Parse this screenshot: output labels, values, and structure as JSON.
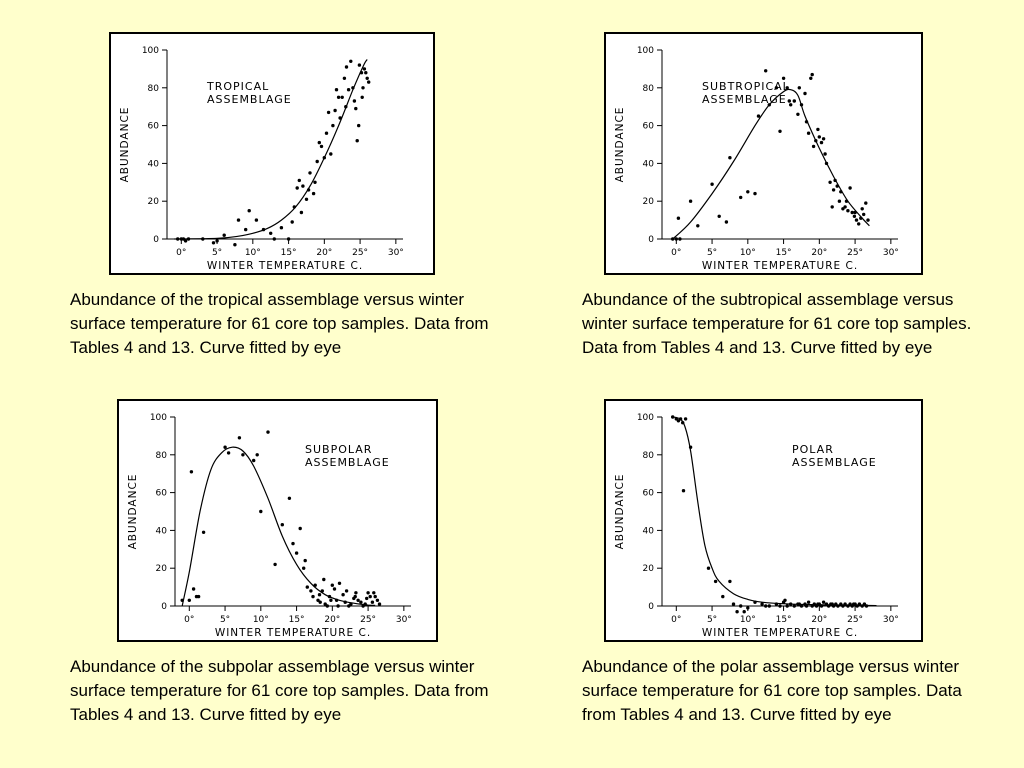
{
  "chart_data": [
    {
      "type": "scatter",
      "title": "TROPICAL\nASSEMBLAGE",
      "xlabel": "WINTER TEMPERATURE C.",
      "ylabel": "ABUNDANCE",
      "xlim": [
        -2,
        31
      ],
      "ylim": [
        0,
        100
      ],
      "xticks": [
        0,
        5,
        10,
        15,
        20,
        25,
        30
      ],
      "xtick_labels": [
        "0°",
        "5°",
        "10°",
        "15°",
        "20°",
        "25°",
        "30°"
      ],
      "yticks": [
        0,
        20,
        40,
        60,
        80,
        100
      ],
      "ytick_labels": [
        "0",
        "20",
        "40",
        "60",
        "80",
        "100"
      ],
      "title_pos": "upper-left",
      "caption": "Abundance of the tropical assemblage versus winter surface temperature for 61 core top samples. Data from Tables 4 and 13. Curve fitted by eye",
      "points": [
        [
          -0.5,
          0
        ],
        [
          0,
          0
        ],
        [
          0.3,
          0
        ],
        [
          0.6,
          -1
        ],
        [
          1,
          0
        ],
        [
          4.5,
          -2
        ],
        [
          5,
          -1
        ],
        [
          6,
          2
        ],
        [
          7.5,
          -3
        ],
        [
          8,
          10
        ],
        [
          9.5,
          15
        ],
        [
          10.5,
          10
        ],
        [
          11.5,
          5
        ],
        [
          14,
          6
        ],
        [
          15,
          0
        ],
        [
          15.5,
          9
        ],
        [
          15.8,
          17
        ],
        [
          16.2,
          27
        ],
        [
          16.5,
          31
        ],
        [
          17,
          28
        ],
        [
          17.5,
          21
        ],
        [
          17.8,
          26
        ],
        [
          18,
          35
        ],
        [
          18.5,
          24
        ],
        [
          18.7,
          30
        ],
        [
          19,
          41
        ],
        [
          19.3,
          51
        ],
        [
          19.6,
          49
        ],
        [
          20,
          43
        ],
        [
          20.3,
          56
        ],
        [
          20.6,
          67
        ],
        [
          20.9,
          45
        ],
        [
          21.2,
          60
        ],
        [
          21.5,
          68
        ],
        [
          21.7,
          79
        ],
        [
          22,
          75
        ],
        [
          22.2,
          64
        ],
        [
          22.5,
          75
        ],
        [
          22.8,
          85
        ],
        [
          23.1,
          91
        ],
        [
          23.4,
          79
        ],
        [
          23.7,
          94
        ],
        [
          24,
          80
        ],
        [
          24.2,
          73
        ],
        [
          24.4,
          69
        ],
        [
          24.6,
          52
        ],
        [
          24.9,
          92
        ],
        [
          25.2,
          88
        ],
        [
          25.4,
          80
        ],
        [
          25.6,
          90
        ],
        [
          25.8,
          88
        ],
        [
          26,
          85
        ],
        [
          26.2,
          83
        ],
        [
          25.3,
          75
        ],
        [
          23,
          70
        ],
        [
          24.8,
          60
        ],
        [
          16.8,
          14
        ],
        [
          12.5,
          3
        ],
        [
          9,
          5
        ],
        [
          13,
          0
        ],
        [
          3,
          0
        ]
      ],
      "curve": [
        [
          -1,
          0
        ],
        [
          5,
          0.3
        ],
        [
          8,
          1.5
        ],
        [
          10,
          3
        ],
        [
          12,
          5.5
        ],
        [
          14,
          10
        ],
        [
          16,
          17
        ],
        [
          18,
          28
        ],
        [
          20,
          43
        ],
        [
          22,
          60
        ],
        [
          24,
          79
        ],
        [
          25.5,
          92
        ],
        [
          26,
          95
        ]
      ]
    },
    {
      "type": "scatter",
      "title": "SUBTROPICAL\nASSEMBLAGE",
      "xlabel": "WINTER TEMPERATURE C.",
      "ylabel": "ABUNDANCE",
      "xlim": [
        -2,
        31
      ],
      "ylim": [
        0,
        100
      ],
      "xticks": [
        0,
        5,
        10,
        15,
        20,
        25,
        30
      ],
      "xtick_labels": [
        "0°",
        "5°",
        "10°",
        "15°",
        "20°",
        "25°",
        "30°"
      ],
      "yticks": [
        0,
        20,
        40,
        60,
        80,
        100
      ],
      "ytick_labels": [
        "0",
        "20",
        "40",
        "60",
        "80",
        "100"
      ],
      "title_pos": "upper-left",
      "caption": "Abundance of the subtropical assemblage versus winter surface temperature for 61 core top samples. Data from Tables 4 and 13. Curve fitted by eye",
      "points": [
        [
          -0.5,
          0
        ],
        [
          0,
          0
        ],
        [
          0.5,
          0
        ],
        [
          0.3,
          11
        ],
        [
          2,
          20
        ],
        [
          3,
          7
        ],
        [
          5,
          29
        ],
        [
          6,
          12
        ],
        [
          7,
          9
        ],
        [
          7.5,
          43
        ],
        [
          9,
          22
        ],
        [
          10,
          25
        ],
        [
          11,
          24
        ],
        [
          11.5,
          65
        ],
        [
          12.5,
          89
        ],
        [
          13,
          71
        ],
        [
          14,
          80
        ],
        [
          14.5,
          57
        ],
        [
          15,
          85
        ],
        [
          15.5,
          80
        ],
        [
          16,
          71
        ],
        [
          16.5,
          73
        ],
        [
          17,
          66
        ],
        [
          17.5,
          71
        ],
        [
          18,
          77
        ],
        [
          18.2,
          62
        ],
        [
          18.5,
          56
        ],
        [
          18.8,
          85
        ],
        [
          19,
          87
        ],
        [
          19.2,
          49
        ],
        [
          19.5,
          52
        ],
        [
          19.8,
          58
        ],
        [
          20,
          54
        ],
        [
          20.3,
          51
        ],
        [
          20.6,
          53
        ],
        [
          21,
          40
        ],
        [
          21.5,
          30
        ],
        [
          21.8,
          17
        ],
        [
          22,
          26
        ],
        [
          22.2,
          31
        ],
        [
          22.5,
          28
        ],
        [
          22.8,
          20
        ],
        [
          23,
          25
        ],
        [
          23.3,
          16
        ],
        [
          23.6,
          17
        ],
        [
          24,
          15
        ],
        [
          24.3,
          27
        ],
        [
          24.6,
          14
        ],
        [
          24.9,
          12
        ],
        [
          25.2,
          10
        ],
        [
          25.5,
          8
        ],
        [
          25.8,
          11
        ],
        [
          26,
          16
        ],
        [
          26.2,
          13
        ],
        [
          26.5,
          19
        ],
        [
          26.8,
          10
        ],
        [
          15.8,
          73
        ],
        [
          17.2,
          80
        ],
        [
          20.8,
          45
        ],
        [
          23.8,
          20
        ],
        [
          25,
          14
        ]
      ],
      "curve": [
        [
          -0.5,
          0
        ],
        [
          2,
          9
        ],
        [
          5,
          24
        ],
        [
          8,
          41
        ],
        [
          11,
          60
        ],
        [
          13,
          71
        ],
        [
          15,
          78
        ],
        [
          16,
          79
        ],
        [
          17,
          76
        ],
        [
          18,
          65
        ],
        [
          20,
          48
        ],
        [
          22,
          33
        ],
        [
          24,
          20
        ],
        [
          26,
          11
        ],
        [
          27,
          7
        ]
      ]
    },
    {
      "type": "scatter",
      "title": "SUBPOLAR\nASSEMBLAGE",
      "xlabel": "WINTER TEMPERATURE C.",
      "ylabel": "ABUNDANCE",
      "xlim": [
        -2,
        31
      ],
      "ylim": [
        0,
        100
      ],
      "xticks": [
        0,
        5,
        10,
        15,
        20,
        25,
        30
      ],
      "xtick_labels": [
        "0°",
        "5°",
        "10°",
        "15°",
        "20°",
        "25°",
        "30°"
      ],
      "yticks": [
        0,
        20,
        40,
        60,
        80,
        100
      ],
      "ytick_labels": [
        "0",
        "20",
        "40",
        "60",
        "80",
        "100"
      ],
      "title_pos": "upper-right",
      "caption": "Abundance of the subpolar assemblage versus winter surface temperature for 61 core top samples. Data from Tables 4 and 13. Curve fitted by eye",
      "points": [
        [
          -1,
          3
        ],
        [
          0,
          3
        ],
        [
          0.3,
          71
        ],
        [
          0.6,
          9
        ],
        [
          1,
          5
        ],
        [
          1.3,
          5
        ],
        [
          2,
          39
        ],
        [
          5,
          84
        ],
        [
          5.5,
          81
        ],
        [
          7,
          89
        ],
        [
          7.5,
          80
        ],
        [
          9,
          77
        ],
        [
          9.5,
          80
        ],
        [
          10,
          50
        ],
        [
          11,
          92
        ],
        [
          12,
          22
        ],
        [
          13,
          43
        ],
        [
          14,
          57
        ],
        [
          14.5,
          33
        ],
        [
          15,
          28
        ],
        [
          15.5,
          41
        ],
        [
          16,
          20
        ],
        [
          16.5,
          10
        ],
        [
          17,
          8
        ],
        [
          17.3,
          5
        ],
        [
          17.6,
          11
        ],
        [
          18,
          3
        ],
        [
          18.3,
          2
        ],
        [
          18.6,
          8
        ],
        [
          19,
          1
        ],
        [
          19.3,
          0
        ],
        [
          19.6,
          5
        ],
        [
          20,
          11
        ],
        [
          20.3,
          9
        ],
        [
          20.6,
          3
        ],
        [
          21,
          12
        ],
        [
          21.5,
          6
        ],
        [
          21.8,
          2
        ],
        [
          22,
          8
        ],
        [
          22.3,
          0
        ],
        [
          22.6,
          1
        ],
        [
          23,
          4
        ],
        [
          23.3,
          7
        ],
        [
          23.6,
          3
        ],
        [
          24,
          2
        ],
        [
          24.3,
          0
        ],
        [
          24.6,
          1
        ],
        [
          25,
          7
        ],
        [
          25.3,
          5
        ],
        [
          25.6,
          2
        ],
        [
          26,
          5
        ],
        [
          26.3,
          3
        ],
        [
          26.6,
          1
        ],
        [
          16.2,
          24
        ],
        [
          18.8,
          14
        ],
        [
          20.8,
          0
        ],
        [
          23.2,
          5
        ],
        [
          24.8,
          4
        ],
        [
          25.8,
          7
        ],
        [
          19.8,
          3
        ],
        [
          18.2,
          6
        ]
      ],
      "curve": [
        [
          -1,
          0
        ],
        [
          0,
          18
        ],
        [
          1.5,
          50
        ],
        [
          3,
          72
        ],
        [
          4.5,
          81
        ],
        [
          6,
          84
        ],
        [
          7.5,
          82
        ],
        [
          9,
          74
        ],
        [
          11,
          57
        ],
        [
          13,
          37
        ],
        [
          15,
          22
        ],
        [
          17,
          12
        ],
        [
          19,
          6
        ],
        [
          21,
          3
        ],
        [
          23,
          1.5
        ],
        [
          25,
          0.5
        ],
        [
          26,
          0.3
        ]
      ]
    },
    {
      "type": "scatter",
      "title": "POLAR\nASSEMBLAGE",
      "xlabel": "WINTER TEMPERATURE C.",
      "ylabel": "ABUNDANCE",
      "xlim": [
        -2,
        31
      ],
      "ylim": [
        0,
        100
      ],
      "xticks": [
        0,
        5,
        10,
        15,
        20,
        25,
        30
      ],
      "xtick_labels": [
        "0°",
        "5°",
        "10°",
        "15°",
        "20°",
        "25°",
        "30°"
      ],
      "yticks": [
        0,
        20,
        40,
        60,
        80,
        100
      ],
      "ytick_labels": [
        "0",
        "20",
        "40",
        "60",
        "80",
        "100"
      ],
      "title_pos": "upper-right",
      "caption": "Abundance of the polar assemblage versus winter surface temperature for 61 core top samples. Data from Tables 4 and 13. Curve fitted by eye",
      "points": [
        [
          -0.5,
          100
        ],
        [
          0,
          99
        ],
        [
          0.3,
          98
        ],
        [
          0.6,
          99
        ],
        [
          0.9,
          97
        ],
        [
          1,
          61
        ],
        [
          1.3,
          99
        ],
        [
          2,
          84
        ],
        [
          4.5,
          20
        ],
        [
          5.5,
          13
        ],
        [
          6.5,
          5
        ],
        [
          7.5,
          13
        ],
        [
          8.5,
          -3
        ],
        [
          9,
          0
        ],
        [
          10,
          -1
        ],
        [
          11,
          2
        ],
        [
          12,
          1
        ],
        [
          13,
          0
        ],
        [
          14,
          1
        ],
        [
          15,
          2
        ],
        [
          15.5,
          0
        ],
        [
          16,
          1
        ],
        [
          16.5,
          0
        ],
        [
          17,
          1
        ],
        [
          17.5,
          0
        ],
        [
          18,
          1
        ],
        [
          18.5,
          2
        ],
        [
          19,
          0
        ],
        [
          19.3,
          1
        ],
        [
          19.6,
          0
        ],
        [
          20,
          1
        ],
        [
          20.3,
          0
        ],
        [
          20.6,
          2
        ],
        [
          21,
          1
        ],
        [
          21.3,
          0
        ],
        [
          21.6,
          1
        ],
        [
          22,
          0
        ],
        [
          22.3,
          1
        ],
        [
          22.6,
          0
        ],
        [
          23,
          1
        ],
        [
          23.3,
          0
        ],
        [
          23.6,
          1
        ],
        [
          24,
          0
        ],
        [
          24.3,
          1
        ],
        [
          24.6,
          0
        ],
        [
          25,
          1
        ],
        [
          25.3,
          0
        ],
        [
          25.6,
          1
        ],
        [
          26,
          0
        ],
        [
          26.3,
          1
        ],
        [
          26.6,
          0
        ],
        [
          15.2,
          3
        ],
        [
          17.2,
          1
        ],
        [
          19.8,
          1
        ],
        [
          21.8,
          1
        ],
        [
          24.8,
          1
        ],
        [
          12.5,
          0
        ],
        [
          9.5,
          -3
        ],
        [
          8,
          1
        ],
        [
          14.5,
          0
        ],
        [
          18.2,
          0
        ]
      ],
      "curve": [
        [
          -0.5,
          100
        ],
        [
          0.5,
          99
        ],
        [
          1.2,
          95
        ],
        [
          2,
          82
        ],
        [
          3,
          55
        ],
        [
          4,
          32
        ],
        [
          5,
          20
        ],
        [
          6,
          13
        ],
        [
          8,
          6.5
        ],
        [
          10,
          3.5
        ],
        [
          12,
          2
        ],
        [
          15,
          1.2
        ],
        [
          18,
          0.8
        ],
        [
          22,
          0.5
        ],
        [
          26,
          0.3
        ],
        [
          28,
          0.2
        ]
      ]
    }
  ]
}
